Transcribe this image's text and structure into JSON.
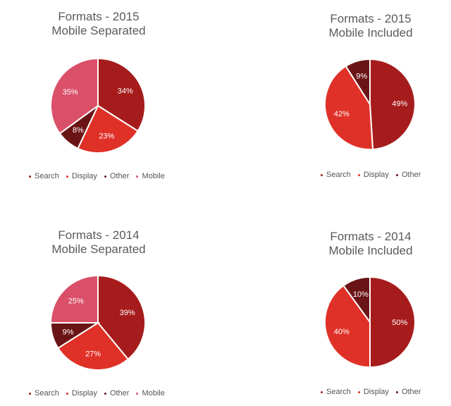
{
  "chart_data": [
    {
      "type": "pie",
      "title_line1": "Formats - 2015",
      "title_line2": "Mobile Separated",
      "categories": [
        "Search",
        "Display",
        "Other",
        "Mobile"
      ],
      "values": [
        34,
        23,
        8,
        35
      ],
      "labels": [
        "34%",
        "23%",
        "8%",
        "35%"
      ],
      "colors": [
        "#a61c1c",
        "#e03128",
        "#6b1416",
        "#d95068"
      ],
      "legend_position": "bottom"
    },
    {
      "type": "pie",
      "title_line1": "Formats - 2015",
      "title_line2": "Mobile Included",
      "categories": [
        "Search",
        "Display",
        "Other"
      ],
      "values": [
        49,
        42,
        9
      ],
      "labels": [
        "49%",
        "42%",
        "9%"
      ],
      "colors": [
        "#a61c1c",
        "#e03128",
        "#6b1416"
      ],
      "legend_position": "bottom"
    },
    {
      "type": "pie",
      "title_line1": "Formats - 2014",
      "title_line2": "Mobile Separated",
      "categories": [
        "Search",
        "Display",
        "Other",
        "Mobile"
      ],
      "values": [
        39,
        27,
        9,
        25
      ],
      "labels": [
        "39%",
        "27%",
        "9%",
        "25%"
      ],
      "colors": [
        "#a61c1c",
        "#e03128",
        "#6b1416",
        "#d95068"
      ],
      "legend_position": "bottom"
    },
    {
      "type": "pie",
      "title_line1": "Formats - 2014",
      "title_line2": "Mobile Included",
      "categories": [
        "Search",
        "Display",
        "Other"
      ],
      "values": [
        50,
        40,
        10
      ],
      "labels": [
        "50%",
        "40%",
        "10%"
      ],
      "colors": [
        "#a61c1c",
        "#e03128",
        "#6b1416"
      ],
      "legend_position": "bottom"
    }
  ]
}
